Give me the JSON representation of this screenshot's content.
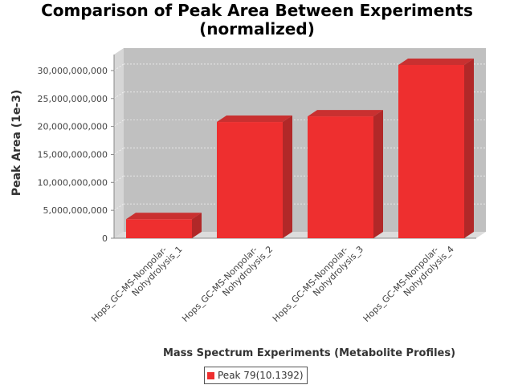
{
  "chart_data": {
    "type": "bar",
    "title_line1": "Comparison of Peak Area Between Experiments",
    "title_line2": "(normalized)",
    "xlabel": "Mass Spectrum Experiments (Metabolite Profiles)",
    "ylabel": "Peak Area (1e-3)",
    "categories": [
      [
        "Hops_GC-MS-Nonpolar-",
        "Nohydrolysis_1"
      ],
      [
        "Hops_GC-MS-Nonpolar-",
        "Nohydrolysis_2"
      ],
      [
        "Hops_GC-MS-Nonpolar-",
        "Nohydrolysis_3"
      ],
      [
        "Hops_GC-MS-Nonpolar-",
        "Nohydrolysis_4"
      ]
    ],
    "series": [
      {
        "name": "Peak 79(10.1392)",
        "color": "#ee2f2f",
        "values": [
          3400000000,
          20800000000,
          21800000000,
          31000000000
        ]
      }
    ],
    "ylim": [
      0,
      32000000000
    ],
    "yticks": [
      0,
      5000000000,
      10000000000,
      15000000000,
      20000000000,
      25000000000,
      30000000000
    ],
    "ytick_labels": [
      "0",
      "5,000,000,000",
      "10,000,000,000",
      "15,000,000,000",
      "20,000,000,000",
      "25,000,000,000",
      "30,000,000,000"
    ],
    "grid": true,
    "legend_position": "bottom-center",
    "plot_background": "#c0c0c0"
  }
}
